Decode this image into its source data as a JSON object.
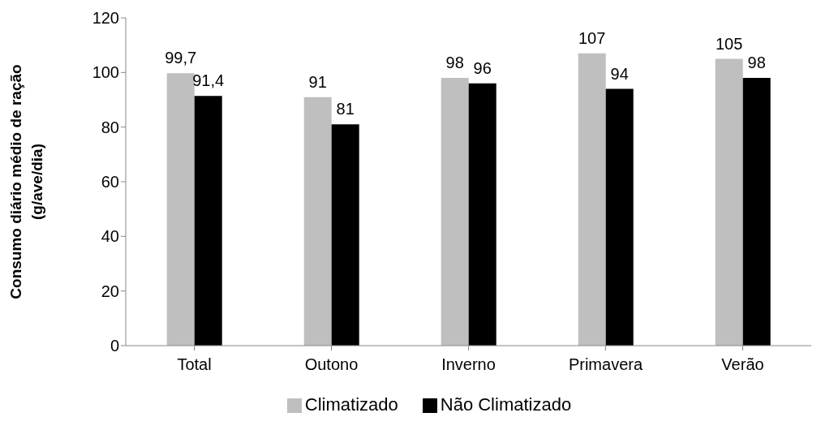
{
  "chart_data": {
    "type": "bar",
    "ylabel": "Consumo diário médio de ração (g/ave/dia)",
    "categories": [
      "Total",
      "Outono",
      "Inverno",
      "Primavera",
      "Verão"
    ],
    "series": [
      {
        "name": "Climatizado",
        "color": "#bfbfbf",
        "values": [
          99.7,
          91,
          98,
          107,
          105
        ],
        "value_labels": [
          "99,7",
          "91",
          "98",
          "107",
          "105"
        ]
      },
      {
        "name": "Não Climatizado",
        "color": "#000000",
        "values": [
          91.4,
          81,
          96,
          94,
          98
        ],
        "value_labels": [
          "91,4",
          "81",
          "96",
          "94",
          "98"
        ]
      }
    ],
    "ylim": [
      0,
      120
    ],
    "yticks": [
      0,
      20,
      40,
      60,
      80,
      100,
      120
    ],
    "grid": false,
    "legend": "bottom"
  }
}
